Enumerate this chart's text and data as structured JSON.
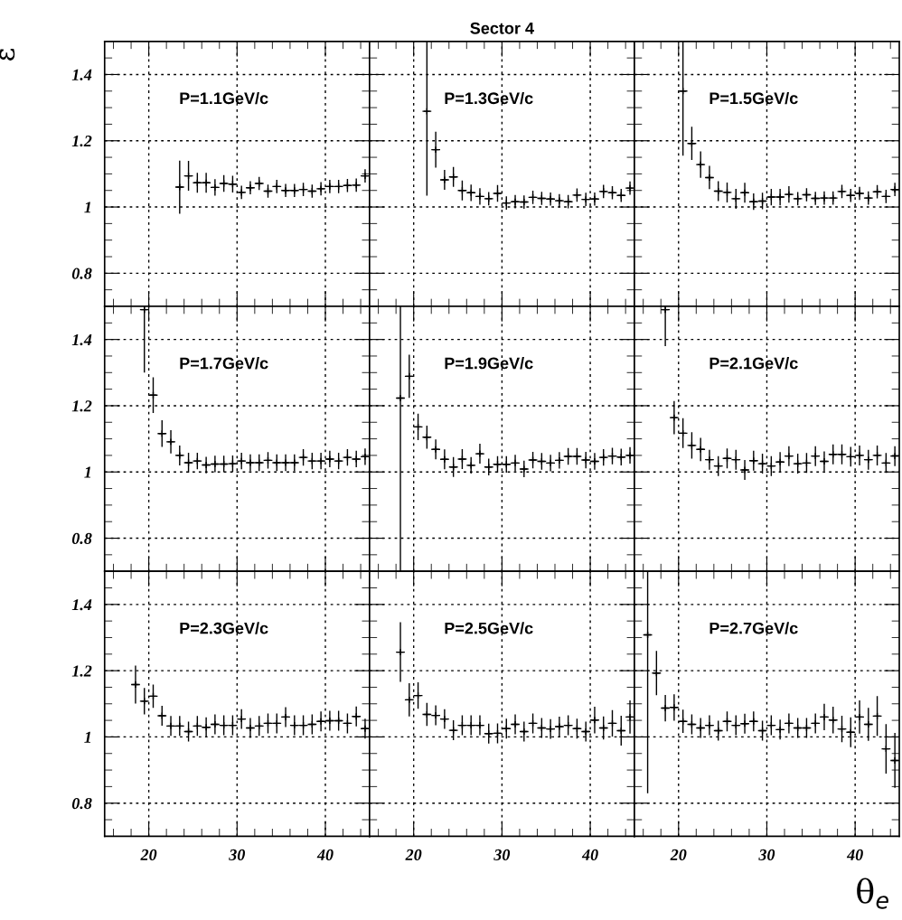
{
  "chart_data": [
    {
      "type": "scatter",
      "annotations": [
        "P=1.1GeV/c"
      ],
      "ylabel": "ε",
      "tick_labels": "y",
      "grid": true,
      "marker": "cross",
      "xlim": [
        15,
        45
      ],
      "ylim": [
        0.7,
        1.5
      ],
      "xticks": [
        20,
        30,
        40
      ],
      "yticks": [
        0.8,
        1,
        1.2,
        1.4
      ],
      "series": [
        {
          "color": "#000000",
          "x": [
            23.5,
            24.5,
            25.5,
            26.5,
            27.5,
            28.5,
            29.5,
            30.5,
            31.5,
            32.5,
            33.5,
            34.5,
            35.5,
            36.5,
            37.5,
            38.5,
            39.5,
            40.5,
            41.5,
            42.5,
            43.5,
            44.5
          ],
          "values": [
            1.06,
            1.094,
            1.073,
            1.073,
            1.059,
            1.071,
            1.069,
            1.044,
            1.058,
            1.071,
            1.048,
            1.062,
            1.05,
            1.05,
            1.053,
            1.048,
            1.055,
            1.062,
            1.062,
            1.065,
            1.066,
            1.094
          ],
          "errors": [
            0.08,
            0.045,
            0.03,
            0.03,
            0.025,
            0.025,
            0.025,
            0.02,
            0.02,
            0.02,
            0.02,
            0.02,
            0.02,
            0.02,
            0.02,
            0.02,
            0.02,
            0.02,
            0.02,
            0.02,
            0.02,
            0.02
          ],
          "xerrors": [
            0.5,
            0.5,
            0.5,
            0.5,
            0.5,
            0.5,
            0.5,
            0.5,
            0.5,
            0.5,
            0.5,
            0.5,
            0.5,
            0.5,
            0.5,
            0.5,
            0.5,
            0.5,
            0.5,
            0.5,
            0.5,
            0.5
          ]
        }
      ]
    },
    {
      "type": "scatter",
      "title": "Sector 4",
      "annotations": [
        "P=1.3GeV/c"
      ],
      "tick_labels": false,
      "grid": true,
      "marker": "cross",
      "xlim": [
        15,
        45
      ],
      "ylim": [
        0.7,
        1.5
      ],
      "xticks": [
        20,
        30,
        40
      ],
      "yticks": [
        0.8,
        1,
        1.2,
        1.4
      ],
      "series": [
        {
          "color": "#000000",
          "x": [
            21.5,
            22.5,
            23.5,
            24.5,
            25.5,
            26.5,
            27.5,
            28.5,
            29.5,
            30.5,
            31.5,
            32.5,
            33.5,
            34.5,
            35.5,
            36.5,
            37.5,
            38.5,
            39.5,
            40.5,
            41.5,
            42.5,
            43.5,
            44.5
          ],
          "values": [
            1.289,
            1.173,
            1.082,
            1.091,
            1.05,
            1.043,
            1.032,
            1.025,
            1.041,
            1.012,
            1.016,
            1.015,
            1.029,
            1.026,
            1.024,
            1.019,
            1.016,
            1.036,
            1.023,
            1.024,
            1.047,
            1.043,
            1.035,
            1.057
          ],
          "errors": [
            [
              1.034,
              1.5
            ],
            0.054,
            0.03,
            0.03,
            0.03,
            0.025,
            0.025,
            0.02,
            0.025,
            0.02,
            0.02,
            0.02,
            0.02,
            0.02,
            0.02,
            0.02,
            0.02,
            0.02,
            0.02,
            0.02,
            0.02,
            0.02,
            0.02,
            0.02
          ],
          "xerrors": [
            0.5,
            0.5,
            0.5,
            0.5,
            0.5,
            0.5,
            0.5,
            0.5,
            0.5,
            0.5,
            0.5,
            0.5,
            0.5,
            0.5,
            0.5,
            0.5,
            0.5,
            0.5,
            0.5,
            0.5,
            0.5,
            0.5,
            0.5,
            0.5
          ]
        }
      ]
    },
    {
      "type": "scatter",
      "annotations": [
        "P=1.5GeV/c"
      ],
      "tick_labels": false,
      "grid": true,
      "marker": "cross",
      "xlim": [
        15,
        45
      ],
      "ylim": [
        0.7,
        1.5
      ],
      "xticks": [
        20,
        30,
        40
      ],
      "yticks": [
        0.8,
        1,
        1.2,
        1.4
      ],
      "series": [
        {
          "color": "#000000",
          "x": [
            20.5,
            21.5,
            22.5,
            23.5,
            24.5,
            25.5,
            26.5,
            27.5,
            28.5,
            29.5,
            30.5,
            31.5,
            32.5,
            33.5,
            34.5,
            35.5,
            36.5,
            37.5,
            38.5,
            39.5,
            40.5,
            41.5,
            42.5,
            43.5,
            44.5
          ],
          "values": [
            1.35,
            1.192,
            1.128,
            1.089,
            1.048,
            1.044,
            1.025,
            1.043,
            1.016,
            1.018,
            1.03,
            1.03,
            1.038,
            1.025,
            1.037,
            1.026,
            1.027,
            1.027,
            1.047,
            1.035,
            1.041,
            1.027,
            1.046,
            1.032,
            1.053
          ],
          "errors": [
            [
              1.155,
              1.5
            ],
            0.05,
            0.04,
            0.035,
            0.03,
            0.03,
            0.03,
            0.03,
            0.025,
            0.025,
            0.025,
            0.025,
            0.025,
            0.02,
            0.02,
            0.02,
            0.02,
            0.02,
            0.02,
            0.02,
            0.02,
            0.02,
            0.02,
            0.02,
            0.02
          ],
          "xerrors": [
            0.5,
            0.5,
            0.5,
            0.5,
            0.5,
            0.5,
            0.5,
            0.5,
            0.5,
            0.5,
            0.5,
            0.5,
            0.5,
            0.5,
            0.5,
            0.5,
            0.5,
            0.5,
            0.5,
            0.5,
            0.5,
            0.5,
            0.5,
            0.5,
            0.5
          ]
        }
      ]
    },
    {
      "type": "scatter",
      "annotations": [
        "P=1.7GeV/c"
      ],
      "tick_labels": "y",
      "grid": true,
      "marker": "cross",
      "xlim": [
        15,
        45
      ],
      "ylim": [
        0.7,
        1.5
      ],
      "xticks": [
        20,
        30,
        40
      ],
      "yticks": [
        0.8,
        1,
        1.2,
        1.4
      ],
      "series": [
        {
          "color": "#000000",
          "x": [
            19.5,
            20.5,
            21.5,
            22.5,
            23.5,
            24.5,
            25.5,
            26.5,
            27.5,
            28.5,
            29.5,
            30.5,
            31.5,
            32.5,
            33.5,
            34.5,
            35.5,
            36.5,
            37.5,
            38.5,
            39.5,
            40.5,
            41.5,
            42.5,
            43.5,
            44.5
          ],
          "values": [
            1.49,
            1.232,
            1.116,
            1.091,
            1.05,
            1.028,
            1.033,
            1.021,
            1.024,
            1.024,
            1.025,
            1.033,
            1.028,
            1.028,
            1.035,
            1.028,
            1.028,
            1.028,
            1.044,
            1.033,
            1.033,
            1.039,
            1.033,
            1.044,
            1.039,
            1.046
          ],
          "errors": [
            [
              1.3,
              1.5
            ],
            0.054,
            0.04,
            0.035,
            0.03,
            0.03,
            0.025,
            0.025,
            0.025,
            0.025,
            0.025,
            0.025,
            0.025,
            0.025,
            0.025,
            0.025,
            0.025,
            0.025,
            0.025,
            0.025,
            0.025,
            0.025,
            0.025,
            0.025,
            0.025,
            0.025
          ],
          "xerrors": [
            0.5,
            0.5,
            0.5,
            0.5,
            0.5,
            0.5,
            0.5,
            0.5,
            0.5,
            0.5,
            0.5,
            0.5,
            0.5,
            0.5,
            0.5,
            0.5,
            0.5,
            0.5,
            0.5,
            0.5,
            0.5,
            0.5,
            0.5,
            0.5,
            0.5,
            0.5
          ]
        }
      ]
    },
    {
      "type": "scatter",
      "annotations": [
        "P=1.9GeV/c"
      ],
      "tick_labels": false,
      "grid": true,
      "marker": "cross",
      "xlim": [
        15,
        45
      ],
      "ylim": [
        0.7,
        1.5
      ],
      "xticks": [
        20,
        30,
        40
      ],
      "yticks": [
        0.8,
        1,
        1.2,
        1.4
      ],
      "series": [
        {
          "color": "#000000",
          "x": [
            18.5,
            19.5,
            20.5,
            21.5,
            22.5,
            23.5,
            24.5,
            25.5,
            26.5,
            27.5,
            28.5,
            29.5,
            30.5,
            31.5,
            32.5,
            33.5,
            34.5,
            35.5,
            36.5,
            37.5,
            38.5,
            39.5,
            40.5,
            41.5,
            42.5,
            43.5,
            44.5
          ],
          "values": [
            1.223,
            1.289,
            1.136,
            1.105,
            1.068,
            1.038,
            1.015,
            1.039,
            1.02,
            1.055,
            1.015,
            1.023,
            1.023,
            1.027,
            1.009,
            1.036,
            1.032,
            1.027,
            1.035,
            1.047,
            1.047,
            1.036,
            1.032,
            1.044,
            1.048,
            1.045,
            1.05
          ],
          "errors": [
            [
              0.7,
              1.5
            ],
            0.065,
            0.04,
            0.035,
            0.03,
            0.03,
            0.03,
            0.03,
            0.025,
            0.03,
            0.025,
            0.025,
            0.025,
            0.025,
            0.025,
            0.025,
            0.025,
            0.025,
            0.025,
            0.025,
            0.025,
            0.025,
            0.025,
            0.025,
            0.025,
            0.025,
            0.025
          ],
          "xerrors": [
            0.5,
            0.5,
            0.5,
            0.5,
            0.5,
            0.5,
            0.5,
            0.5,
            0.5,
            0.5,
            0.5,
            0.5,
            0.5,
            0.5,
            0.5,
            0.5,
            0.5,
            0.5,
            0.5,
            0.5,
            0.5,
            0.5,
            0.5,
            0.5,
            0.5,
            0.5,
            0.5
          ]
        }
      ]
    },
    {
      "type": "scatter",
      "annotations": [
        "P=2.1GeV/c"
      ],
      "tick_labels": false,
      "grid": true,
      "marker": "cross",
      "xlim": [
        15,
        45
      ],
      "ylim": [
        0.7,
        1.5
      ],
      "xticks": [
        20,
        30,
        40
      ],
      "yticks": [
        0.8,
        1,
        1.2,
        1.4
      ],
      "series": [
        {
          "color": "#000000",
          "x": [
            18.5,
            19.5,
            20.5,
            21.5,
            22.5,
            23.5,
            24.5,
            25.5,
            26.5,
            27.5,
            28.5,
            29.5,
            30.5,
            31.5,
            32.5,
            33.5,
            34.5,
            35.5,
            36.5,
            37.5,
            38.5,
            39.5,
            40.5,
            41.5,
            42.5,
            43.5,
            44.5
          ],
          "values": [
            1.49,
            1.164,
            1.117,
            1.08,
            1.068,
            1.037,
            1.018,
            1.041,
            1.037,
            1.006,
            1.034,
            1.025,
            1.018,
            1.03,
            1.048,
            1.025,
            1.027,
            1.048,
            1.032,
            1.053,
            1.053,
            1.046,
            1.05,
            1.037,
            1.05,
            1.027,
            1.048
          ],
          "errors": [
            [
              1.38,
              1.5
            ],
            0.05,
            0.045,
            0.04,
            0.035,
            0.03,
            0.03,
            0.03,
            0.03,
            0.03,
            0.03,
            0.03,
            0.03,
            0.03,
            0.03,
            0.03,
            0.03,
            0.03,
            0.03,
            0.03,
            0.03,
            0.03,
            0.03,
            0.03,
            0.03,
            0.03,
            0.03
          ],
          "xerrors": [
            0.5,
            0.5,
            0.5,
            0.5,
            0.5,
            0.5,
            0.5,
            0.5,
            0.5,
            0.5,
            0.5,
            0.5,
            0.5,
            0.5,
            0.5,
            0.5,
            0.5,
            0.5,
            0.5,
            0.5,
            0.5,
            0.5,
            0.5,
            0.5,
            0.5,
            0.5,
            0.5
          ]
        }
      ]
    },
    {
      "type": "scatter",
      "annotations": [
        "P=2.3GeV/c"
      ],
      "grid": true,
      "marker": "cross",
      "xlim": [
        15,
        45
      ],
      "ylim": [
        0.7,
        1.5
      ],
      "xticks": [
        20,
        30,
        40
      ],
      "yticks": [
        0.8,
        1,
        1.2,
        1.4
      ],
      "series": [
        {
          "color": "#000000",
          "x": [
            18.5,
            19.5,
            20.5,
            21.5,
            22.5,
            23.5,
            24.5,
            25.5,
            26.5,
            27.5,
            28.5,
            29.5,
            30.5,
            31.5,
            32.5,
            33.5,
            34.5,
            35.5,
            36.5,
            37.5,
            38.5,
            39.5,
            40.5,
            41.5,
            42.5,
            43.5,
            44.5
          ],
          "values": [
            1.158,
            1.108,
            1.123,
            1.064,
            1.033,
            1.033,
            1.016,
            1.033,
            1.029,
            1.038,
            1.035,
            1.035,
            1.054,
            1.027,
            1.033,
            1.041,
            1.041,
            1.06,
            1.035,
            1.035,
            1.038,
            1.047,
            1.049,
            1.049,
            1.041,
            1.062,
            1.025
          ],
          "errors": [
            0.057,
            0.04,
            0.035,
            0.03,
            0.03,
            0.03,
            0.03,
            0.03,
            0.03,
            0.03,
            0.03,
            0.03,
            0.03,
            0.03,
            0.03,
            0.03,
            0.03,
            0.03,
            0.03,
            0.03,
            0.03,
            0.03,
            0.03,
            0.03,
            0.03,
            0.03,
            0.03
          ],
          "xerrors": [
            0.5,
            0.5,
            0.5,
            0.5,
            0.5,
            0.5,
            0.5,
            0.5,
            0.5,
            0.5,
            0.5,
            0.5,
            0.5,
            0.5,
            0.5,
            0.5,
            0.5,
            0.5,
            0.5,
            0.5,
            0.5,
            0.5,
            0.5,
            0.5,
            0.5,
            0.5,
            0.5
          ]
        }
      ]
    },
    {
      "type": "scatter",
      "annotations": [
        "P=2.5GeV/c"
      ],
      "tick_labels": "x",
      "grid": true,
      "marker": "cross",
      "xlim": [
        15,
        45
      ],
      "ylim": [
        0.7,
        1.5
      ],
      "xticks": [
        20,
        30,
        40
      ],
      "yticks": [
        0.8,
        1,
        1.2,
        1.4
      ],
      "series": [
        {
          "color": "#000000",
          "x": [
            18.5,
            19.5,
            20.5,
            21.5,
            22.5,
            23.5,
            24.5,
            25.5,
            26.5,
            27.5,
            28.5,
            29.5,
            30.5,
            31.5,
            32.5,
            33.5,
            34.5,
            35.5,
            36.5,
            37.5,
            38.5,
            39.5,
            40.5,
            41.5,
            42.5,
            43.5,
            44.5
          ],
          "values": [
            1.256,
            1.112,
            1.125,
            1.068,
            1.065,
            1.054,
            1.02,
            1.035,
            1.035,
            1.035,
            1.01,
            1.011,
            1.025,
            1.038,
            1.016,
            1.041,
            1.027,
            1.024,
            1.031,
            1.035,
            1.025,
            1.016,
            1.051,
            1.027,
            1.041,
            1.019,
            1.06
          ],
          "errors": [
            0.09,
            0.05,
            0.04,
            0.035,
            0.03,
            0.03,
            0.03,
            0.03,
            0.03,
            0.03,
            0.03,
            0.03,
            0.03,
            0.03,
            0.03,
            0.03,
            0.03,
            0.03,
            0.03,
            0.03,
            0.03,
            0.03,
            0.04,
            0.035,
            0.04,
            0.045,
            0.05
          ],
          "xerrors": [
            0.5,
            0.5,
            0.5,
            0.5,
            0.5,
            0.5,
            0.5,
            0.5,
            0.5,
            0.5,
            0.5,
            0.5,
            0.5,
            0.5,
            0.5,
            0.5,
            0.5,
            0.5,
            0.5,
            0.5,
            0.5,
            0.5,
            0.5,
            0.5,
            0.5,
            0.5,
            0.5
          ]
        }
      ]
    },
    {
      "type": "scatter",
      "annotations": [
        "P=2.7GeV/c"
      ],
      "xlabel": "θ$_{e}$",
      "tick_labels": "x",
      "grid": true,
      "marker": "cross",
      "xlim": [
        15,
        45
      ],
      "ylim": [
        0.7,
        1.5
      ],
      "xticks": [
        20,
        30,
        40
      ],
      "yticks": [
        0.8,
        1,
        1.2,
        1.4
      ],
      "series": [
        {
          "color": "#000000",
          "x": [
            16.5,
            17.5,
            18.5,
            19.5,
            20.5,
            21.5,
            22.5,
            23.5,
            24.5,
            25.5,
            26.5,
            27.5,
            28.5,
            29.5,
            30.5,
            31.5,
            32.5,
            33.5,
            34.5,
            35.5,
            36.5,
            37.5,
            38.5,
            39.5,
            40.5,
            41.5,
            42.5,
            43.5,
            44.5
          ],
          "values": [
            1.308,
            1.193,
            1.087,
            1.089,
            1.047,
            1.038,
            1.027,
            1.035,
            1.019,
            1.047,
            1.035,
            1.04,
            1.047,
            1.019,
            1.035,
            1.022,
            1.041,
            1.027,
            1.027,
            1.041,
            1.06,
            1.051,
            1.024,
            1.014,
            1.06,
            1.038,
            1.063,
            0.964,
            0.929
          ],
          "errors": [
            [
              0.83,
              1.5
            ],
            0.067,
            0.04,
            0.04,
            0.035,
            0.03,
            0.03,
            0.03,
            0.03,
            0.03,
            0.03,
            0.03,
            0.03,
            0.03,
            0.03,
            0.03,
            0.03,
            0.03,
            0.03,
            0.03,
            0.04,
            0.04,
            0.04,
            0.045,
            0.05,
            0.05,
            0.06,
            0.075,
            0.083
          ],
          "xerrors": [
            0.5,
            0.5,
            0.5,
            0.5,
            0.5,
            0.5,
            0.5,
            0.5,
            0.5,
            0.5,
            0.5,
            0.5,
            0.5,
            0.5,
            0.5,
            0.5,
            0.5,
            0.5,
            0.5,
            0.5,
            0.5,
            0.5,
            0.5,
            0.5,
            0.5,
            0.5,
            0.5,
            0.5,
            0.5
          ]
        }
      ]
    }
  ]
}
